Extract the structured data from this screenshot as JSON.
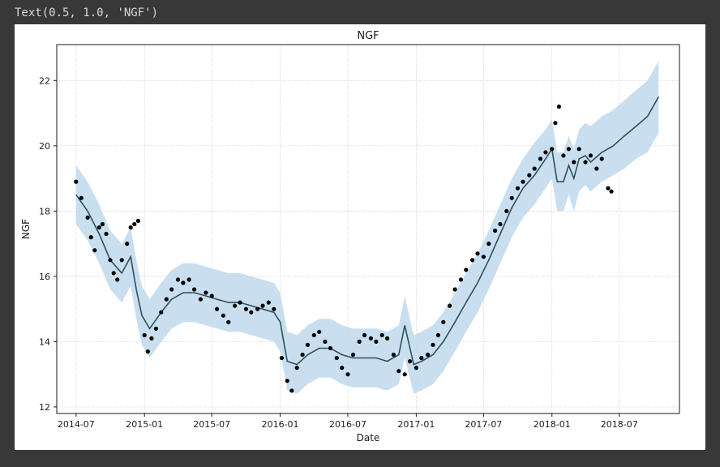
{
  "cell_output": "Text(0.5, 1.0, 'NGF')",
  "colors": {
    "points": "#000000",
    "forecast_line": "#2f4f5f",
    "uncertainty_band": "#c3dced",
    "grid": "#cccccc",
    "page_background": "#383838",
    "figure_background": "#ffffff"
  },
  "chart_data": {
    "type": "line",
    "title": "NGF",
    "xlabel": "Date",
    "ylabel": "NGF",
    "xlim": [
      "2014-05-10",
      "2018-12-10"
    ],
    "ylim": [
      11.8,
      23.1
    ],
    "grid": true,
    "x_tick_labels": [
      "2014-07",
      "2015-01",
      "2015-07",
      "2016-01",
      "2016-07",
      "2017-01",
      "2017-07",
      "2018-01",
      "2018-07"
    ],
    "y_tick_labels": [
      "12",
      "14",
      "16",
      "18",
      "20",
      "22"
    ],
    "series": [
      {
        "kind": "forecast",
        "x": [
          "2014-07-01",
          "2014-08-01",
          "2014-09-01",
          "2014-10-01",
          "2014-11-01",
          "2014-11-25",
          "2014-12-10",
          "2014-12-25",
          "2015-01-15",
          "2015-02-15",
          "2015-03-15",
          "2015-04-15",
          "2015-05-15",
          "2015-06-15",
          "2015-07-15",
          "2015-08-15",
          "2015-09-15",
          "2015-10-15",
          "2015-11-15",
          "2015-12-15",
          "2016-01-01",
          "2016-01-20",
          "2016-02-15",
          "2016-03-15",
          "2016-04-15",
          "2016-05-15",
          "2016-06-15",
          "2016-07-15",
          "2016-08-15",
          "2016-09-15",
          "2016-10-15",
          "2016-11-15",
          "2016-12-01",
          "2016-12-25",
          "2017-01-15",
          "2017-02-15",
          "2017-03-15",
          "2017-04-15",
          "2017-05-15",
          "2017-06-15",
          "2017-07-15",
          "2017-08-15",
          "2017-09-15",
          "2017-10-15",
          "2017-11-15",
          "2017-12-15",
          "2018-01-01",
          "2018-01-15",
          "2018-02-01",
          "2018-02-15",
          "2018-03-01",
          "2018-03-15",
          "2018-04-01",
          "2018-04-15",
          "2018-05-15",
          "2018-06-15",
          "2018-07-15",
          "2018-08-15",
          "2018-09-15",
          "2018-10-15"
        ],
        "yhat": [
          18.5,
          18.0,
          17.3,
          16.5,
          16.1,
          16.6,
          15.6,
          14.8,
          14.4,
          14.9,
          15.3,
          15.5,
          15.5,
          15.4,
          15.3,
          15.2,
          15.2,
          15.1,
          15.0,
          14.9,
          14.6,
          13.4,
          13.3,
          13.6,
          13.8,
          13.8,
          13.6,
          13.5,
          13.5,
          13.5,
          13.4,
          13.6,
          14.5,
          13.3,
          13.4,
          13.6,
          14.0,
          14.6,
          15.2,
          15.8,
          16.5,
          17.3,
          18.1,
          18.7,
          19.1,
          19.6,
          19.9,
          18.9,
          18.9,
          19.4,
          19.0,
          19.6,
          19.7,
          19.5,
          19.8,
          20.0,
          20.3,
          20.6,
          20.9,
          21.5
        ],
        "yhat_lower": [
          17.6,
          17.1,
          16.4,
          15.6,
          15.2,
          15.7,
          14.7,
          13.9,
          13.5,
          14.0,
          14.4,
          14.6,
          14.6,
          14.5,
          14.4,
          14.3,
          14.3,
          14.2,
          14.1,
          14.0,
          13.7,
          12.5,
          12.4,
          12.7,
          12.9,
          12.9,
          12.7,
          12.6,
          12.6,
          12.6,
          12.5,
          12.7,
          13.5,
          12.4,
          12.5,
          12.7,
          13.1,
          13.7,
          14.3,
          14.9,
          15.6,
          16.4,
          17.2,
          17.8,
          18.2,
          18.7,
          19.0,
          18.0,
          18.0,
          18.5,
          18.0,
          18.6,
          18.8,
          18.6,
          18.9,
          19.1,
          19.3,
          19.6,
          19.8,
          20.4
        ],
        "yhat_upper": [
          19.4,
          18.9,
          18.2,
          17.4,
          17.0,
          17.5,
          16.5,
          15.7,
          15.3,
          15.8,
          16.2,
          16.4,
          16.4,
          16.3,
          16.2,
          16.1,
          16.1,
          16.0,
          15.9,
          15.8,
          15.5,
          14.3,
          14.2,
          14.5,
          14.7,
          14.7,
          14.5,
          14.4,
          14.4,
          14.4,
          14.3,
          14.5,
          15.4,
          14.2,
          14.3,
          14.5,
          14.9,
          15.5,
          16.1,
          16.7,
          17.4,
          18.2,
          19.0,
          19.6,
          20.1,
          20.5,
          20.8,
          19.8,
          19.8,
          20.3,
          19.9,
          20.5,
          20.7,
          20.6,
          20.9,
          21.1,
          21.4,
          21.7,
          22.0,
          22.6
        ]
      },
      {
        "kind": "observed",
        "x": [
          "2014-07-01",
          "2014-07-15",
          "2014-08-01",
          "2014-08-10",
          "2014-08-20",
          "2014-09-01",
          "2014-09-10",
          "2014-09-20",
          "2014-10-01",
          "2014-10-10",
          "2014-10-20",
          "2014-11-01",
          "2014-11-15",
          "2014-11-25",
          "2014-12-05",
          "2014-12-15",
          "2015-01-01",
          "2015-01-10",
          "2015-01-20",
          "2015-02-01",
          "2015-02-15",
          "2015-03-01",
          "2015-03-15",
          "2015-04-01",
          "2015-04-15",
          "2015-05-01",
          "2015-05-15",
          "2015-06-01",
          "2015-06-15",
          "2015-07-01",
          "2015-07-15",
          "2015-08-01",
          "2015-08-15",
          "2015-09-01",
          "2015-09-15",
          "2015-10-01",
          "2015-10-15",
          "2015-11-01",
          "2015-11-15",
          "2015-12-01",
          "2015-12-15",
          "2016-01-05",
          "2016-01-20",
          "2016-02-01",
          "2016-02-15",
          "2016-03-01",
          "2016-03-15",
          "2016-04-01",
          "2016-04-15",
          "2016-05-01",
          "2016-05-15",
          "2016-06-01",
          "2016-06-15",
          "2016-07-01",
          "2016-07-15",
          "2016-08-01",
          "2016-08-15",
          "2016-09-01",
          "2016-09-15",
          "2016-10-01",
          "2016-10-15",
          "2016-11-01",
          "2016-11-15",
          "2016-12-01",
          "2016-12-15",
          "2017-01-01",
          "2017-01-15",
          "2017-02-01",
          "2017-02-15",
          "2017-03-01",
          "2017-03-15",
          "2017-04-01",
          "2017-04-15",
          "2017-05-01",
          "2017-05-15",
          "2017-06-01",
          "2017-06-15",
          "2017-07-01",
          "2017-07-15",
          "2017-08-01",
          "2017-08-15",
          "2017-09-01",
          "2017-09-15",
          "2017-10-01",
          "2017-10-15",
          "2017-11-01",
          "2017-11-15",
          "2017-12-01",
          "2017-12-15",
          "2018-01-01",
          "2018-01-10",
          "2018-01-20",
          "2018-02-01",
          "2018-02-15",
          "2018-03-01",
          "2018-03-15",
          "2018-04-01",
          "2018-04-15",
          "2018-05-01",
          "2018-05-15",
          "2018-06-01",
          "2018-06-10"
        ],
        "y": [
          18.9,
          18.4,
          17.8,
          17.2,
          16.8,
          17.5,
          17.6,
          17.3,
          16.5,
          16.1,
          15.9,
          16.5,
          17.0,
          17.5,
          17.6,
          17.7,
          14.2,
          13.7,
          14.1,
          14.4,
          14.9,
          15.3,
          15.6,
          15.9,
          15.8,
          15.9,
          15.6,
          15.3,
          15.5,
          15.4,
          15.0,
          14.8,
          14.6,
          15.1,
          15.2,
          15.0,
          14.9,
          15.0,
          15.1,
          15.2,
          15.0,
          13.5,
          12.8,
          12.5,
          13.2,
          13.6,
          13.9,
          14.2,
          14.3,
          14.0,
          13.8,
          13.5,
          13.2,
          13.0,
          13.6,
          14.0,
          14.2,
          14.1,
          14.0,
          14.2,
          14.1,
          13.6,
          13.1,
          13.0,
          13.4,
          13.2,
          13.5,
          13.6,
          13.9,
          14.2,
          14.6,
          15.1,
          15.6,
          15.9,
          16.2,
          16.5,
          16.7,
          16.6,
          17.0,
          17.4,
          17.6,
          18.0,
          18.4,
          18.7,
          18.9,
          19.1,
          19.3,
          19.6,
          19.8,
          19.9,
          20.7,
          21.2,
          19.7,
          19.9,
          19.5,
          19.9,
          19.5,
          19.7,
          19.3,
          19.6,
          18.7,
          18.6
        ]
      }
    ]
  }
}
